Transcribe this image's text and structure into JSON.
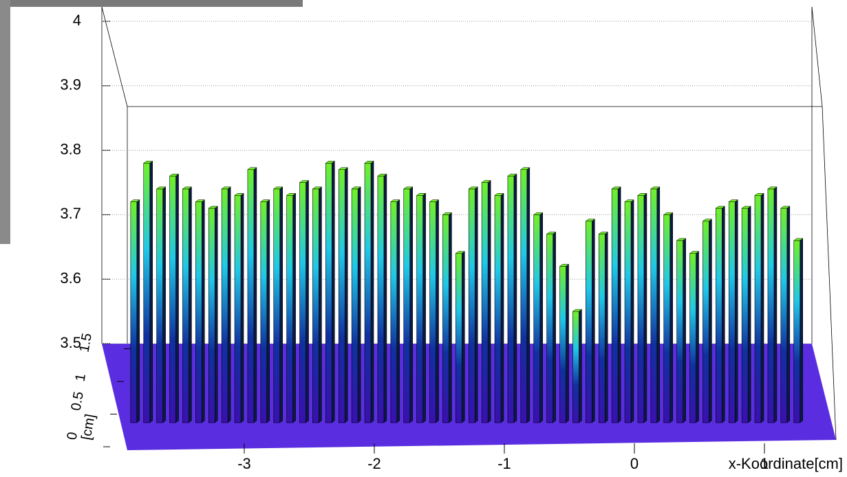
{
  "chart_data": {
    "type": "lego",
    "xlabel": "x-Koordinate[cm]",
    "ylabel": "[cm]",
    "x": [
      -3.85,
      -3.75,
      -3.65,
      -3.55,
      -3.45,
      -3.35,
      -3.25,
      -3.15,
      -3.05,
      -2.95,
      -2.85,
      -2.75,
      -2.65,
      -2.55,
      -2.45,
      -2.35,
      -2.25,
      -2.15,
      -2.05,
      -1.95,
      -1.85,
      -1.75,
      -1.65,
      -1.55,
      -1.45,
      -1.35,
      -1.25,
      -1.15,
      -1.05,
      -0.95,
      -0.85,
      -0.75,
      -0.65,
      -0.55,
      -0.45,
      -0.35,
      -0.25,
      -0.15,
      -0.05,
      0.05,
      0.15,
      0.25,
      0.35,
      0.45,
      0.55,
      0.65,
      0.75,
      0.85,
      0.95,
      1.05,
      1.15,
      1.25
    ],
    "values": [
      3.72,
      3.78,
      3.74,
      3.76,
      3.74,
      3.72,
      3.71,
      3.74,
      3.73,
      3.77,
      3.72,
      3.74,
      3.73,
      3.75,
      3.74,
      3.78,
      3.77,
      3.74,
      3.78,
      3.76,
      3.72,
      3.74,
      3.73,
      3.72,
      3.7,
      3.64,
      3.74,
      3.75,
      3.73,
      3.76,
      3.77,
      3.7,
      3.67,
      3.62,
      3.55,
      3.69,
      3.67,
      3.74,
      3.72,
      3.73,
      3.74,
      3.7,
      3.66,
      3.64,
      3.69,
      3.71,
      3.72,
      3.71,
      3.73,
      3.74,
      3.71,
      3.66
    ],
    "xlim": [
      -4,
      1.4
    ],
    "xticks": [
      -3,
      -2,
      -1,
      0,
      1
    ],
    "zlim": [
      3.5,
      4
    ],
    "zticks": [
      3.5,
      3.6,
      3.7,
      3.8,
      3.9,
      4
    ],
    "yticks": [
      0,
      0.5,
      1,
      1.5
    ],
    "grid": true,
    "palette": [
      "#3a10b0",
      "#1030a0",
      "#20c8e8",
      "#70f028"
    ],
    "floor_color": "#5a2ee0"
  }
}
